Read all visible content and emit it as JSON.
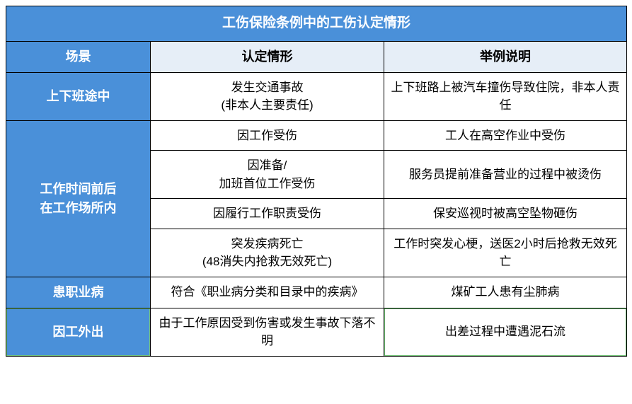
{
  "table": {
    "title": "工伤保险条例中的工伤认定情形",
    "headers": {
      "scene": "场景",
      "situation": "认定情形",
      "example": "举例说明"
    },
    "rows": [
      {
        "scene": "上下班途中",
        "situation": "发生交通事故\n(非本人主要责任)",
        "example": "上下班路上被汽车撞伤导致住院，非本人责任",
        "rowspan": 1
      },
      {
        "scene": "工作时间前后\n在工作场所内",
        "situation": "因工作受伤",
        "example": "工人在高空作业中受伤",
        "rowspan": 4
      },
      {
        "situation": "因准备/\n加班首位工作受伤",
        "example": "服务员提前准备营业的过程中被烫伤"
      },
      {
        "situation": "因履行工作职责受伤",
        "example": "保安巡视时被高空坠物砸伤"
      },
      {
        "situation": "突发疾病死亡\n(48消失内抢救无效死亡)",
        "example": "工作时突发心梗，送医2小时后抢救无效死亡"
      },
      {
        "scene": "患职业病",
        "situation": "符合《职业病分类和目录中的疾病》",
        "example": "煤矿工人患有尘肺病",
        "rowspan": 1
      },
      {
        "scene": "因工外出",
        "situation": "由于工作原因受到伤害或发生事故下落不明",
        "example": "出差过程中遭遇泥石流",
        "rowspan": 1
      }
    ],
    "colors": {
      "header_bg": "#4a90d9",
      "header_text": "#ffffff",
      "light_header_bg": "#e6eef7",
      "border": "#000000",
      "highlight_border": "#6fbf73"
    }
  }
}
